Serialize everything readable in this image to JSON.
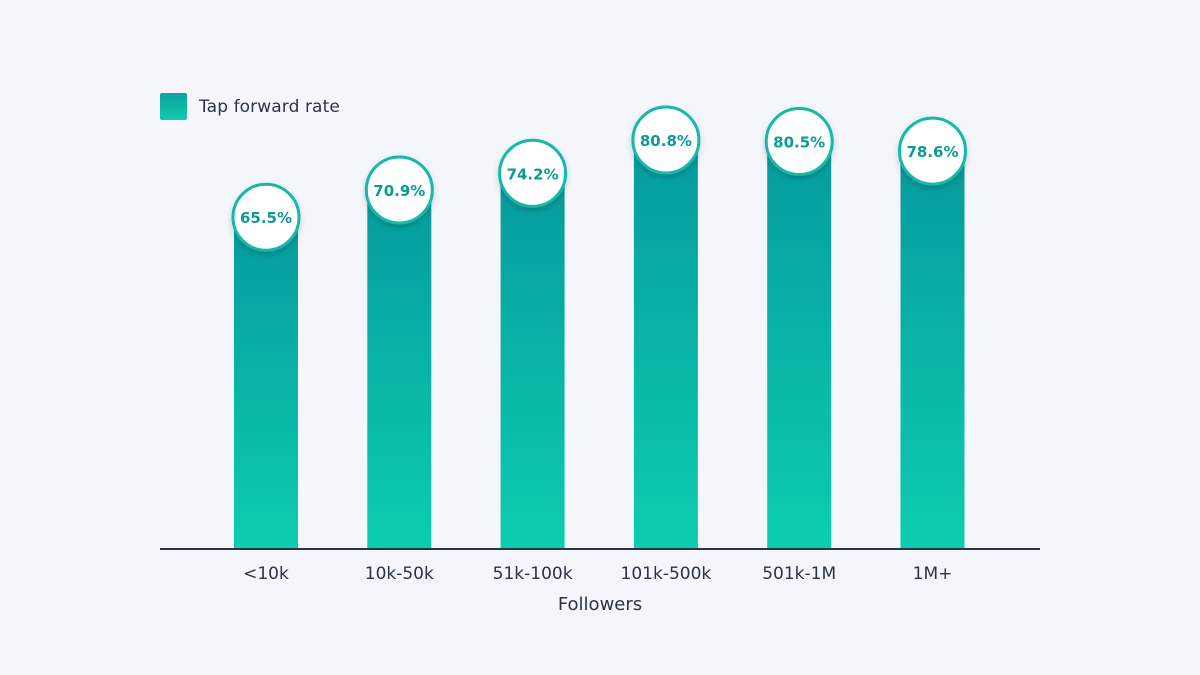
{
  "legend": {
    "label": "Tap forward rate",
    "color": "#0fb3a6"
  },
  "chart_data": {
    "type": "bar",
    "title": "",
    "xlabel": "Followers",
    "ylabel": "",
    "categories": [
      "<10k",
      "10k-50k",
      "51k-100k",
      "101k-500k",
      "501k-1M",
      "1M+"
    ],
    "series": [
      {
        "name": "Tap forward rate",
        "values": [
          65.5,
          70.9,
          74.2,
          80.8,
          80.5,
          78.6
        ]
      }
    ],
    "value_labels": [
      "65.5%",
      "70.9%",
      "74.2%",
      "80.8%",
      "80.5%",
      "78.6%"
    ],
    "unit": "%",
    "ylim": [
      0,
      100
    ],
    "grid": false,
    "legend_position": "top-left",
    "colors": {
      "bar_top": "#069a9f",
      "bar_bottom": "#0ccdaf",
      "label_text": "#0a9b98",
      "circle_border": "#12b8a6",
      "axis": "#2b3347",
      "text": "#2b3347"
    }
  }
}
